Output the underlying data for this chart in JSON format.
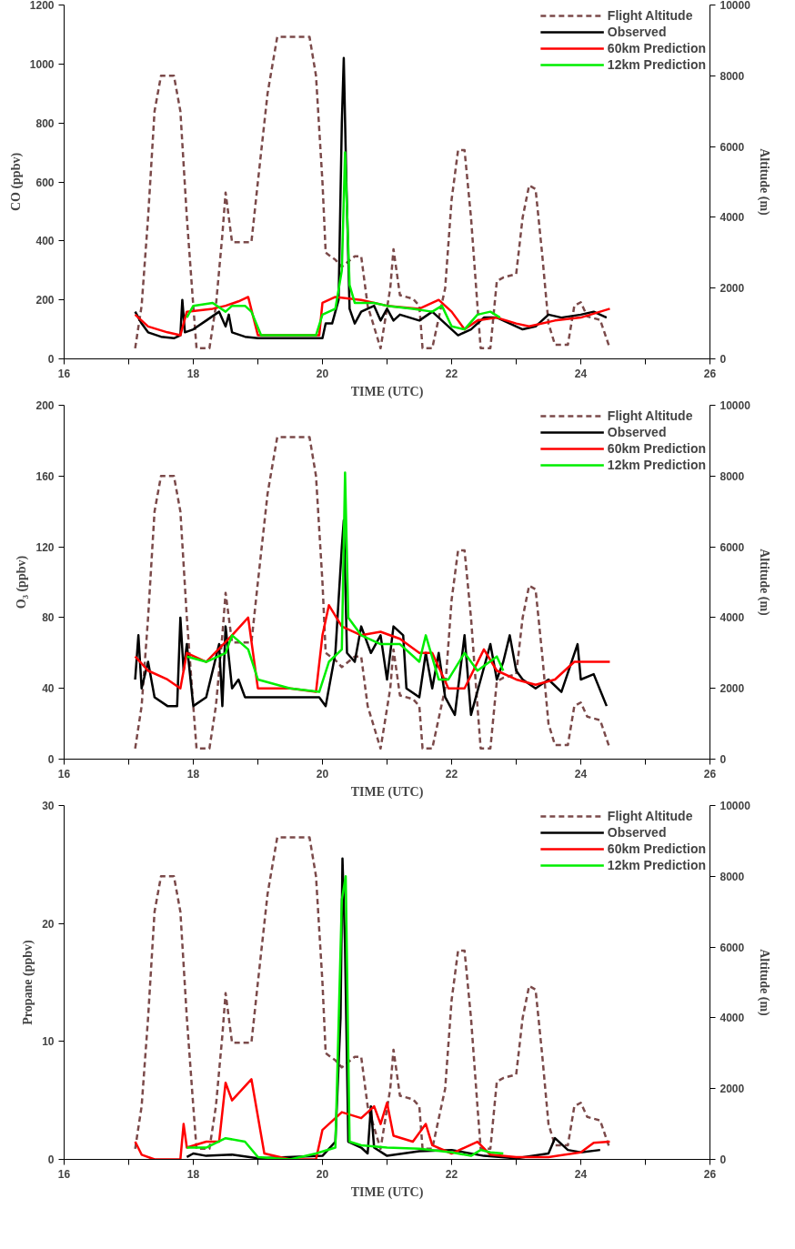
{
  "chart_data": [
    {
      "type": "line",
      "xlabel": "TIME (UTC)",
      "ylabel": "CO (ppbv)",
      "y2label": "Altitude (m)",
      "xlim": [
        16,
        26
      ],
      "xticks": [
        16,
        {
          "value": 17,
          "label": null
        },
        18,
        {
          "value": 19,
          "label": null
        },
        20,
        {
          "value": 21,
          "label": null
        },
        22,
        {
          "value": 23,
          "label": null
        },
        24,
        {
          "value": 25,
          "label": null
        },
        26
      ],
      "ylim": [
        0,
        1200
      ],
      "yticks": [
        0,
        200,
        400,
        600,
        800,
        1000,
        1200
      ],
      "y2lim": [
        0,
        10000
      ],
      "y2ticks": [
        0,
        2000,
        4000,
        6000,
        8000,
        10000
      ],
      "legend": "top right",
      "grid": false,
      "series": [
        {
          "name": "Flight Altitude",
          "color": "#7b4a4a",
          "axis": "y2",
          "line_style": "dashed",
          "x": [
            17.1,
            17.2,
            17.3,
            17.4,
            17.5,
            17.7,
            17.8,
            17.9,
            18.0,
            18.05,
            18.25,
            18.35,
            18.45,
            18.5,
            18.6,
            18.9,
            19.0,
            19.15,
            19.3,
            19.8,
            19.9,
            20.0,
            20.05,
            20.2,
            20.3,
            20.5,
            20.6,
            20.7,
            20.9,
            21.05,
            21.1,
            21.2,
            21.4,
            21.5,
            21.55,
            21.7,
            21.9,
            22.0,
            22.1,
            22.2,
            22.3,
            22.4,
            22.45,
            22.6,
            22.7,
            22.8,
            23.0,
            23.1,
            23.2,
            23.3,
            23.4,
            23.5,
            23.6,
            23.8,
            23.9,
            24.0,
            24.1,
            24.3,
            24.45
          ],
          "values": [
            300,
            1500,
            4000,
            7000,
            8000,
            8000,
            7000,
            4000,
            1500,
            300,
            300,
            1500,
            3500,
            4700,
            3300,
            3300,
            5000,
            7500,
            9100,
            9100,
            8000,
            5000,
            3000,
            2800,
            2600,
            2900,
            2900,
            1500,
            300,
            2000,
            3100,
            1800,
            1700,
            1500,
            300,
            300,
            2000,
            4500,
            5900,
            5900,
            4000,
            1500,
            300,
            300,
            2200,
            2300,
            2400,
            4000,
            4900,
            4800,
            3000,
            1000,
            400,
            400,
            1500,
            1600,
            1200,
            1100,
            300
          ]
        },
        {
          "name": "Observed",
          "color": "#000000",
          "x": [
            17.1,
            17.2,
            17.3,
            17.5,
            17.7,
            17.8,
            17.83,
            17.87,
            18.0,
            18.2,
            18.4,
            18.5,
            18.55,
            18.6,
            18.8,
            19.0,
            19.5,
            20.0,
            20.05,
            20.15,
            20.25,
            20.3,
            20.33,
            20.37,
            20.42,
            20.5,
            20.6,
            20.8,
            20.9,
            21.0,
            21.1,
            21.2,
            21.5,
            21.7,
            21.9,
            22.1,
            22.3,
            22.5,
            22.7,
            22.9,
            23.1,
            23.3,
            23.5,
            23.7,
            24.0,
            24.2,
            24.4
          ],
          "values": [
            160,
            120,
            90,
            75,
            70,
            80,
            200,
            90,
            100,
            130,
            160,
            110,
            150,
            90,
            75,
            70,
            70,
            70,
            120,
            120,
            200,
            800,
            1020,
            600,
            170,
            120,
            160,
            180,
            130,
            170,
            130,
            150,
            130,
            160,
            120,
            80,
            100,
            140,
            140,
            120,
            100,
            110,
            150,
            140,
            150,
            160,
            140
          ]
        },
        {
          "name": "60km Prediction",
          "color": "#ff0000",
          "x": [
            17.1,
            17.3,
            17.6,
            17.8,
            17.9,
            18.3,
            18.5,
            18.7,
            18.85,
            19.0,
            19.5,
            19.95,
            20.0,
            20.2,
            20.6,
            21.0,
            21.5,
            21.8,
            22.0,
            22.2,
            22.4,
            22.7,
            23.0,
            23.2,
            23.6,
            24.0,
            24.45
          ],
          "values": [
            150,
            110,
            90,
            80,
            160,
            170,
            180,
            195,
            210,
            80,
            80,
            80,
            190,
            210,
            200,
            180,
            170,
            200,
            160,
            100,
            130,
            140,
            120,
            110,
            130,
            140,
            170
          ]
        },
        {
          "name": "12km Prediction",
          "color": "#00ee00",
          "x": [
            17.9,
            18.0,
            18.3,
            18.5,
            18.6,
            18.8,
            18.9,
            19.05,
            19.9,
            20.0,
            20.2,
            20.3,
            20.35,
            20.42,
            20.5,
            20.8,
            21.0,
            21.4,
            21.7,
            21.85,
            22.0,
            22.2,
            22.4,
            22.6,
            22.75
          ],
          "values": [
            140,
            180,
            190,
            160,
            180,
            180,
            160,
            80,
            80,
            150,
            170,
            300,
            700,
            250,
            190,
            190,
            180,
            170,
            160,
            180,
            110,
            100,
            150,
            160,
            140
          ]
        }
      ]
    },
    {
      "type": "line",
      "xlabel": "TIME (UTC)",
      "ylabel": "O₃ (ppbv)",
      "y2label": "Altitude (m)",
      "xlim": [
        16,
        26
      ],
      "xticks": [
        16,
        {
          "value": 17,
          "label": null
        },
        18,
        {
          "value": 19,
          "label": null
        },
        20,
        {
          "value": 21,
          "label": null
        },
        22,
        {
          "value": 23,
          "label": null
        },
        24,
        {
          "value": 25,
          "label": null
        },
        26
      ],
      "ylim": [
        0,
        200
      ],
      "yticks": [
        0,
        40,
        80,
        120,
        160,
        200
      ],
      "y2lim": [
        0,
        10000
      ],
      "y2ticks": [
        0,
        2000,
        4000,
        6000,
        8000,
        10000
      ],
      "legend": "top right",
      "grid": false,
      "series": [
        {
          "name": "Flight Altitude",
          "color": "#7b4a4a",
          "axis": "y2",
          "line_style": "dashed",
          "x": [
            17.1,
            17.2,
            17.3,
            17.4,
            17.5,
            17.7,
            17.8,
            17.9,
            18.0,
            18.05,
            18.25,
            18.35,
            18.45,
            18.5,
            18.6,
            18.9,
            19.0,
            19.15,
            19.3,
            19.8,
            19.9,
            20.0,
            20.05,
            20.2,
            20.3,
            20.5,
            20.6,
            20.7,
            20.9,
            21.05,
            21.1,
            21.2,
            21.4,
            21.5,
            21.55,
            21.7,
            21.9,
            22.0,
            22.1,
            22.2,
            22.3,
            22.4,
            22.45,
            22.6,
            22.7,
            22.8,
            23.0,
            23.1,
            23.2,
            23.3,
            23.4,
            23.5,
            23.6,
            23.8,
            23.9,
            24.0,
            24.1,
            24.3,
            24.45
          ],
          "values": [
            300,
            1500,
            4000,
            7000,
            8000,
            8000,
            7000,
            4000,
            1500,
            300,
            300,
            1500,
            3500,
            4700,
            3300,
            3300,
            5000,
            7500,
            9100,
            9100,
            8000,
            5000,
            3000,
            2800,
            2600,
            2900,
            2900,
            1500,
            300,
            2000,
            3100,
            1800,
            1700,
            1500,
            300,
            300,
            2000,
            4500,
            5900,
            5900,
            4000,
            1500,
            300,
            300,
            2200,
            2300,
            2400,
            4000,
            4900,
            4800,
            3000,
            1000,
            400,
            400,
            1500,
            1600,
            1200,
            1100,
            300
          ]
        },
        {
          "name": "Observed",
          "color": "#000000",
          "x": [
            17.1,
            17.15,
            17.2,
            17.3,
            17.4,
            17.6,
            17.75,
            17.8,
            17.85,
            17.9,
            18.0,
            18.2,
            18.4,
            18.45,
            18.5,
            18.6,
            18.7,
            18.8,
            19.0,
            19.5,
            19.95,
            20.05,
            20.2,
            20.3,
            20.33,
            20.38,
            20.5,
            20.6,
            20.75,
            20.9,
            21.0,
            21.1,
            21.25,
            21.3,
            21.5,
            21.6,
            21.7,
            21.8,
            21.9,
            22.05,
            22.2,
            22.3,
            22.45,
            22.6,
            22.7,
            22.8,
            22.9,
            23.0,
            23.1,
            23.3,
            23.5,
            23.7,
            23.95,
            24.0,
            24.2,
            24.4
          ],
          "values": [
            45,
            70,
            40,
            55,
            35,
            30,
            30,
            80,
            50,
            65,
            30,
            35,
            65,
            30,
            75,
            40,
            45,
            35,
            35,
            35,
            35,
            30,
            60,
            120,
            135,
            60,
            55,
            75,
            60,
            70,
            45,
            75,
            70,
            40,
            35,
            60,
            40,
            60,
            35,
            25,
            70,
            25,
            45,
            65,
            45,
            55,
            70,
            50,
            45,
            40,
            45,
            38,
            65,
            45,
            48,
            30
          ]
        },
        {
          "name": "60km Prediction",
          "color": "#ff0000",
          "x": [
            17.1,
            17.3,
            17.6,
            17.8,
            17.9,
            18.2,
            18.6,
            18.85,
            19.0,
            19.5,
            19.9,
            20.0,
            20.1,
            20.3,
            20.6,
            20.9,
            21.2,
            21.5,
            21.7,
            21.95,
            22.2,
            22.5,
            22.7,
            23.0,
            23.3,
            23.6,
            23.9,
            24.2,
            24.45
          ],
          "values": [
            58,
            50,
            45,
            40,
            60,
            55,
            70,
            80,
            40,
            40,
            38,
            70,
            87,
            75,
            70,
            72,
            68,
            60,
            60,
            40,
            40,
            62,
            50,
            45,
            42,
            45,
            55,
            55,
            55
          ]
        },
        {
          "name": "12km Prediction",
          "color": "#00ee00",
          "x": [
            17.9,
            18.2,
            18.5,
            18.6,
            18.85,
            19.0,
            19.5,
            19.95,
            20.1,
            20.3,
            20.35,
            20.4,
            20.6,
            20.9,
            21.2,
            21.5,
            21.6,
            21.8,
            21.95,
            22.2,
            22.4,
            22.7,
            22.8
          ],
          "values": [
            58,
            55,
            60,
            70,
            62,
            45,
            40,
            38,
            55,
            62,
            162,
            80,
            70,
            65,
            65,
            55,
            70,
            45,
            45,
            60,
            50,
            58,
            50
          ]
        }
      ]
    },
    {
      "type": "line",
      "xlabel": "TIME (UTC)",
      "ylabel": "Propane (ppbv)",
      "y2label": "Altitude (m)",
      "xlim": [
        16,
        26
      ],
      "xticks": [
        16,
        {
          "value": 17,
          "label": null
        },
        18,
        {
          "value": 19,
          "label": null
        },
        20,
        {
          "value": 21,
          "label": null
        },
        22,
        {
          "value": 23,
          "label": null
        },
        24,
        {
          "value": 25,
          "label": null
        },
        26
      ],
      "ylim": [
        0,
        30
      ],
      "yticks": [
        0,
        10,
        20,
        30
      ],
      "y2lim": [
        0,
        10000
      ],
      "y2ticks": [
        0,
        2000,
        4000,
        6000,
        8000,
        10000
      ],
      "legend": "top right",
      "grid": false,
      "series": [
        {
          "name": "Flight Altitude",
          "color": "#7b4a4a",
          "axis": "y2",
          "line_style": "dashed",
          "x": [
            17.1,
            17.2,
            17.3,
            17.4,
            17.5,
            17.7,
            17.8,
            17.9,
            18.0,
            18.05,
            18.25,
            18.35,
            18.45,
            18.5,
            18.6,
            18.9,
            19.0,
            19.15,
            19.3,
            19.8,
            19.9,
            20.0,
            20.05,
            20.2,
            20.3,
            20.5,
            20.6,
            20.7,
            20.9,
            21.05,
            21.1,
            21.2,
            21.4,
            21.5,
            21.55,
            21.7,
            21.9,
            22.0,
            22.1,
            22.2,
            22.3,
            22.4,
            22.45,
            22.6,
            22.7,
            22.8,
            23.0,
            23.1,
            23.2,
            23.3,
            23.4,
            23.5,
            23.6,
            23.8,
            23.9,
            24.0,
            24.1,
            24.3,
            24.45
          ],
          "values": [
            300,
            1500,
            4000,
            7000,
            8000,
            8000,
            7000,
            4000,
            1500,
            300,
            300,
            1500,
            3500,
            4700,
            3300,
            3300,
            5000,
            7500,
            9100,
            9100,
            8000,
            5000,
            3000,
            2800,
            2600,
            2900,
            2900,
            1500,
            300,
            2000,
            3100,
            1800,
            1700,
            1500,
            300,
            300,
            2000,
            4500,
            5900,
            5900,
            4000,
            1500,
            300,
            300,
            2200,
            2300,
            2400,
            4000,
            4900,
            4800,
            3000,
            1000,
            400,
            400,
            1500,
            1600,
            1200,
            1100,
            300
          ]
        },
        {
          "name": "Observed",
          "color": "#000000",
          "x": [
            17.9,
            18.0,
            18.2,
            18.6,
            19.0,
            20.0,
            20.2,
            20.28,
            20.31,
            20.35,
            20.4,
            20.6,
            20.7,
            20.75,
            20.8,
            21.0,
            21.5,
            22.0,
            22.5,
            23.0,
            23.5,
            23.6,
            23.8,
            24.0,
            24.3
          ],
          "values": [
            0.2,
            0.5,
            0.3,
            0.4,
            0.1,
            0.3,
            1.5,
            12,
            25.5,
            18,
            1.5,
            1.0,
            0.5,
            4.5,
            1,
            0.3,
            0.7,
            0.8,
            0.3,
            0.1,
            0.5,
            1.8,
            0.8,
            0.6,
            0.8
          ]
        },
        {
          "name": "60km Prediction",
          "color": "#ff0000",
          "x": [
            17.1,
            17.2,
            17.4,
            17.8,
            17.85,
            17.9,
            18.2,
            18.4,
            18.5,
            18.6,
            18.9,
            19.1,
            19.5,
            19.9,
            20.0,
            20.3,
            20.6,
            20.8,
            20.9,
            21.0,
            21.1,
            21.4,
            21.6,
            21.7,
            22.0,
            22.4,
            22.6,
            23.0,
            23.5,
            24.0,
            24.2,
            24.45
          ],
          "values": [
            1.5,
            0.4,
            0,
            0,
            3,
            1,
            1.5,
            1.5,
            6.5,
            5,
            6.8,
            0.5,
            0,
            0,
            2.5,
            4,
            3.5,
            4.5,
            3,
            4.8,
            2,
            1.5,
            3,
            1.2,
            0.5,
            1.5,
            0.4,
            0.2,
            0.2,
            0.6,
            1.4,
            1.5
          ]
        },
        {
          "name": "12km Prediction",
          "color": "#00ee00",
          "x": [
            17.9,
            18.2,
            18.5,
            18.8,
            19.0,
            19.5,
            19.9,
            20.2,
            20.3,
            20.36,
            20.42,
            20.6,
            21.0,
            21.5,
            22.0,
            22.3,
            22.45,
            22.6,
            22.8
          ],
          "values": [
            1,
            1,
            1.8,
            1.5,
            0.2,
            0,
            0.5,
            1,
            22,
            24,
            1.5,
            1.2,
            1.0,
            0.9,
            0.6,
            0.3,
            0.8,
            0.6,
            0.5
          ]
        }
      ]
    }
  ]
}
